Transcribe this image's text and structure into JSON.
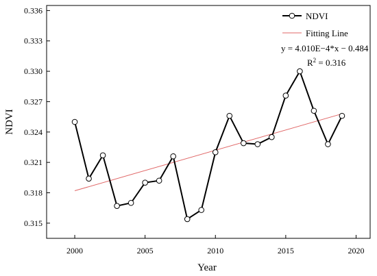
{
  "chart_data": {
    "type": "line",
    "xlabel": "Year",
    "ylabel": "NDVI",
    "xlim": [
      1998,
      2021
    ],
    "ylim": [
      0.3135,
      0.3365
    ],
    "x_ticks": [
      2000,
      2005,
      2010,
      2015,
      2020
    ],
    "x_tick_labels": [
      "2000",
      "2005",
      "2010",
      "2015",
      "2020"
    ],
    "y_ticks": [
      0.315,
      0.318,
      0.321,
      0.324,
      0.327,
      0.33,
      0.333,
      0.336
    ],
    "y_tick_labels": [
      "0.315",
      "0.318",
      "0.321",
      "0.324",
      "0.327",
      "0.330",
      "0.333",
      "0.336"
    ],
    "series": [
      {
        "name": "NDVI",
        "color": "#000000",
        "marker": "open-circle",
        "x": [
          2000,
          2001,
          2002,
          2003,
          2004,
          2005,
          2006,
          2007,
          2008,
          2009,
          2010,
          2011,
          2012,
          2013,
          2014,
          2015,
          2016,
          2017,
          2018,
          2019
        ],
        "y": [
          0.325,
          0.3194,
          0.3217,
          0.3167,
          0.317,
          0.319,
          0.3192,
          0.3216,
          0.3154,
          0.3163,
          0.322,
          0.3256,
          0.3229,
          0.3228,
          0.3235,
          0.3276,
          0.33,
          0.3261,
          0.3228,
          0.3256
        ]
      }
    ],
    "fit": {
      "name": "Fitting Line",
      "color": "#e06666",
      "x": [
        2000,
        2019
      ],
      "y": [
        0.3182,
        0.3258
      ]
    },
    "legend": {
      "position": "top-right",
      "series_label": "NDVI",
      "fit_label": "Fitting Line",
      "equation": "y = 4.010E−4*x − 0.484",
      "r2_prefix": "R",
      "r2_sup": "2",
      "r2_value": " = 0.316"
    }
  }
}
